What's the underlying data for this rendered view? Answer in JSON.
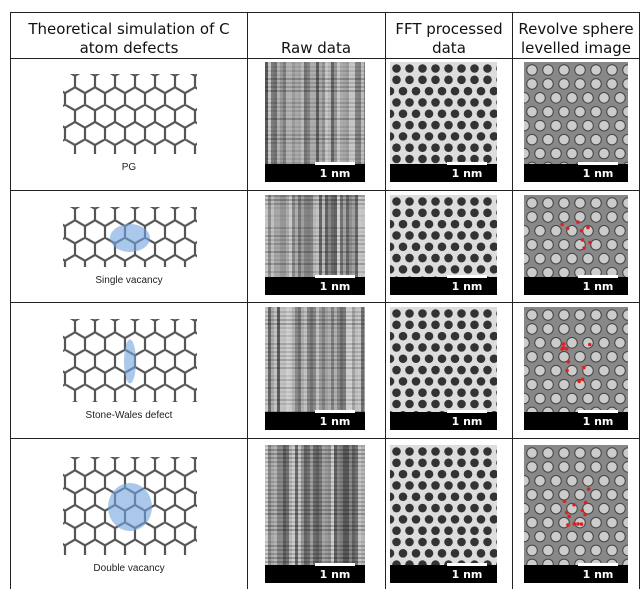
{
  "table": {
    "header": [
      "Theoretical simulation of C atom defects",
      "Raw data",
      "FFT processed data",
      "Revolve sphere levelled image"
    ],
    "rows": [
      {
        "label": "PG",
        "scale_bars": [
          "1 nm",
          "1 nm",
          "1 nm"
        ]
      },
      {
        "label": "Single vacancy",
        "scale_bars": [
          "1 nm",
          "1 nm",
          "1 nm"
        ]
      },
      {
        "label": "Stone-Wales  defect",
        "scale_bars": [
          "1 nm",
          "1 nm",
          "1 nm"
        ]
      },
      {
        "label": "Double vacancy",
        "scale_bars": [
          "1 nm",
          "1 nm",
          "1 nm"
        ]
      }
    ]
  }
}
